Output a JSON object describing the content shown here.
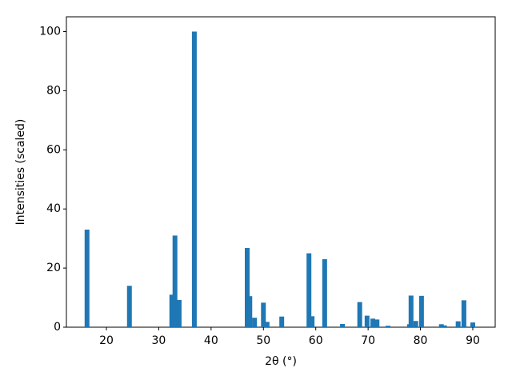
{
  "chart_data": {
    "type": "bar",
    "xlabel": "2θ (°)",
    "ylabel": "Intensities (scaled)",
    "x": [
      16.3,
      24.4,
      32.5,
      33.1,
      33.9,
      36.8,
      46.9,
      47.4,
      48.3,
      50.0,
      50.7,
      53.5,
      58.7,
      59.3,
      61.7,
      65.1,
      68.4,
      69.8,
      70.9,
      71.7,
      73.8,
      77.9,
      78.2,
      79.1,
      80.2,
      84.0,
      84.6,
      87.2,
      88.3,
      90.0
    ],
    "values": [
      33,
      14,
      11,
      31,
      9.2,
      100,
      26.8,
      10.5,
      3.2,
      8.3,
      1.8,
      3.6,
      25,
      3.7,
      23,
      1.1,
      8.5,
      3.9,
      2.9,
      2.6,
      0.5,
      1.0,
      10.7,
      2.1,
      10.6,
      1.0,
      0.6,
      2.0,
      9.1,
      1.6
    ],
    "color": "#1f77b4",
    "xlim": [
      12.36,
      94.28
    ],
    "ylim": [
      0,
      105
    ],
    "xticks": [
      20,
      30,
      40,
      50,
      60,
      70,
      80,
      90
    ],
    "yticks": [
      0,
      20,
      40,
      60,
      80,
      100
    ]
  }
}
